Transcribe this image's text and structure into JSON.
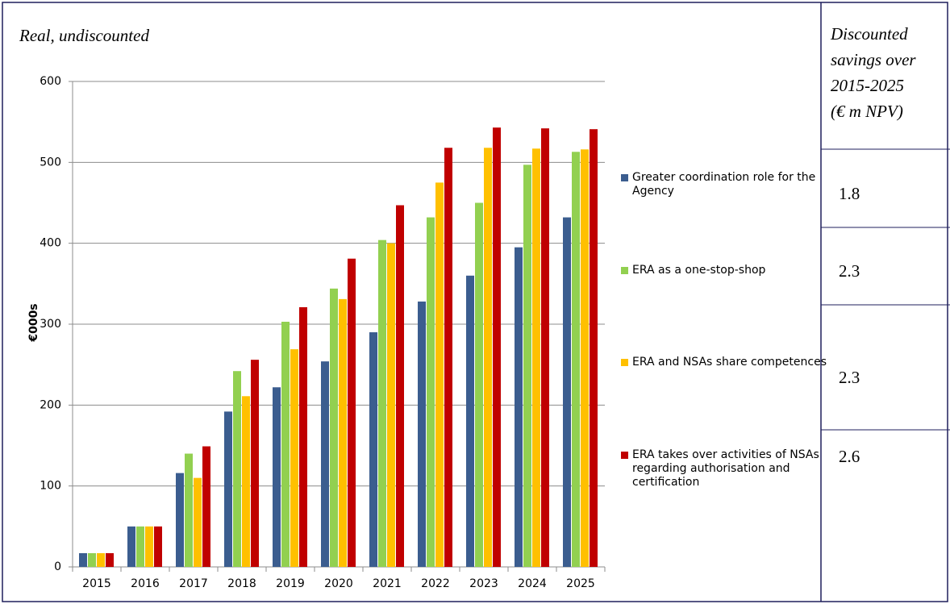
{
  "chart_data": {
    "type": "bar",
    "title": "Real, undiscounted",
    "y_label": "€000s",
    "categories": [
      "2015",
      "2016",
      "2017",
      "2018",
      "2019",
      "2020",
      "2021",
      "2022",
      "2023",
      "2024",
      "2025"
    ],
    "series": [
      {
        "name": "Greater coordination role for the Agency",
        "color": "#3b5d8f",
        "values": [
          17,
          50,
          116,
          192,
          222,
          254,
          290,
          328,
          360,
          395,
          432
        ]
      },
      {
        "name": "ERA as a one-stop-shop",
        "color": "#92d050",
        "values": [
          17,
          50,
          140,
          242,
          303,
          344,
          404,
          432,
          450,
          497,
          513
        ]
      },
      {
        "name": "ERA and NSAs share competences",
        "color": "#ffc000",
        "values": [
          17,
          50,
          110,
          211,
          269,
          331,
          400,
          475,
          518,
          517,
          516
        ]
      },
      {
        "name": "ERA takes over activities of NSAs regarding authorisation and certification",
        "color": "#c00000",
        "values": [
          17,
          50,
          149,
          256,
          321,
          381,
          447,
          518,
          543,
          542,
          541
        ]
      }
    ],
    "ylim": [
      0,
      600
    ],
    "yticks": [
      0,
      100,
      200,
      300,
      400,
      500,
      600
    ],
    "grid": true
  },
  "table": {
    "header": [
      "Discounted",
      "savings over",
      "2015-2025",
      "(€ m NPV)"
    ],
    "values": [
      1.8,
      2.3,
      2.3,
      2.6
    ]
  }
}
